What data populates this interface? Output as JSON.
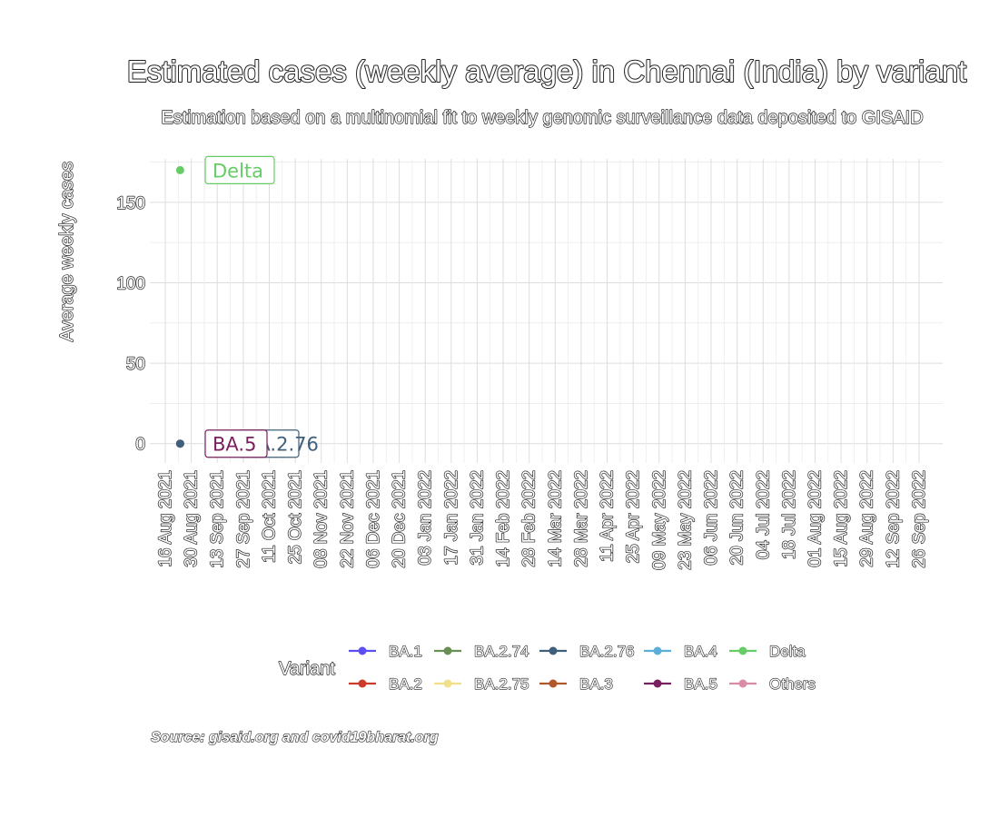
{
  "chart_data": {
    "type": "line",
    "title": "Estimated cases (weekly average) in Chennai (India) by variant",
    "subtitle": "Estimation based on a multinomial fit to weekly genomic surveillance data deposited to GISAID",
    "ylabel": "Average weekly cases",
    "xlabel": "",
    "caption": "Source: gisaid.org and covid19bharat.org",
    "ylim": [
      -12,
      177
    ],
    "yticks": [
      0,
      50,
      100,
      150
    ],
    "x_dates": [
      "16 Aug 2021",
      "30 Aug 2021",
      "13 Sep 2021",
      "27 Sep 2021",
      "11 Oct 2021",
      "25 Oct 2021",
      "08 Nov 2021",
      "22 Nov 2021",
      "06 Dec 2021",
      "20 Dec 2021",
      "03 Jan 2022",
      "17 Jan 2022",
      "31 Jan 2022",
      "14 Feb 2022",
      "28 Feb 2022",
      "14 Mar 2022",
      "28 Mar 2022",
      "11 Apr 2022",
      "25 Apr 2022",
      "09 May 2022",
      "23 May 2022",
      "06 Jun 2022",
      "20 Jun 2022",
      "04 Jul 2022",
      "18 Jul 2022",
      "01 Aug 2022",
      "15 Aug 2022",
      "29 Aug 2022",
      "12 Sep 2022",
      "26 Sep 2022"
    ],
    "grid": true,
    "legend": {
      "title": "Variant",
      "position": "bottom",
      "entries": [
        {
          "name": "BA.1",
          "color": "#5a4ff5"
        },
        {
          "name": "BA.2.74",
          "color": "#6a8f55"
        },
        {
          "name": "BA.2.76",
          "color": "#3f5f7a"
        },
        {
          "name": "BA.4",
          "color": "#5aaed8"
        },
        {
          "name": "Delta",
          "color": "#66cc66"
        },
        {
          "name": "BA.2",
          "color": "#cc3a2a"
        },
        {
          "name": "BA.2.75",
          "color": "#f0e08a"
        },
        {
          "name": "BA.3",
          "color": "#b0582a"
        },
        {
          "name": "BA.5",
          "color": "#7a1f5f"
        },
        {
          "name": "Others",
          "color": "#d98ca6"
        }
      ]
    },
    "points": [
      {
        "series": "Delta",
        "date": "2021-08-24",
        "value": 170,
        "color": "#66cc66",
        "label": "Delta"
      },
      {
        "series": "BA.5",
        "date": "2021-08-24",
        "value": 0,
        "color": "#7a1f5f",
        "label": "BA.5"
      },
      {
        "series": "BA.2.76",
        "date": "2021-08-24",
        "value": 0,
        "color": "#3f5f7a",
        "label": "BA.2.76"
      }
    ]
  }
}
